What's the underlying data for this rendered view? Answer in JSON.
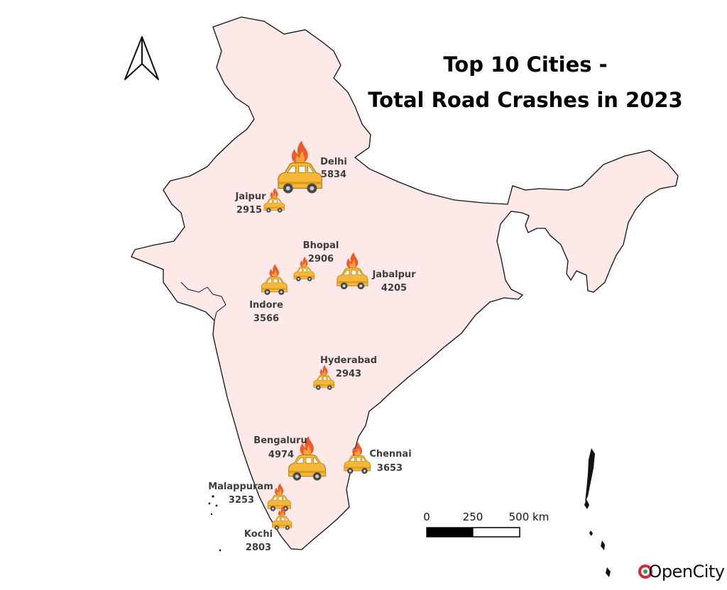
{
  "title": {
    "line1": "Top 10 Cities -",
    "line2": "Total Road Crashes in 2023"
  },
  "north_arrow": {
    "icon": "north-arrow-icon"
  },
  "cities": [
    {
      "name": "Delhi",
      "value": "5834",
      "crashes": 5834
    },
    {
      "name": "Jaipur",
      "value": "2915",
      "crashes": 2915
    },
    {
      "name": "Bhopal",
      "value": "2906",
      "crashes": 2906
    },
    {
      "name": "Jabalpur",
      "value": "4205",
      "crashes": 4205
    },
    {
      "name": "Indore",
      "value": "3566",
      "crashes": 3566
    },
    {
      "name": "Hyderabad",
      "value": "2943",
      "crashes": 2943
    },
    {
      "name": "Bengaluru",
      "value": "4974",
      "crashes": 4974
    },
    {
      "name": "Chennai",
      "value": "3653",
      "crashes": 3653
    },
    {
      "name": "Malappuram",
      "value": "3253",
      "crashes": 3253
    },
    {
      "name": "Kochi",
      "value": "2803",
      "crashes": 2803
    }
  ],
  "marker": {
    "icon": "burning-car-icon",
    "car_color": "#f4b738",
    "flame_color": "#f05a2a"
  },
  "scale_bar": {
    "labels": [
      "0",
      "250",
      "500 km"
    ]
  },
  "colors": {
    "land": "#fde9e8",
    "border": "#111111",
    "text": "#3d3d3d"
  },
  "logo": {
    "open": "Open",
    "city": "City",
    "accent": "#d7263d"
  }
}
